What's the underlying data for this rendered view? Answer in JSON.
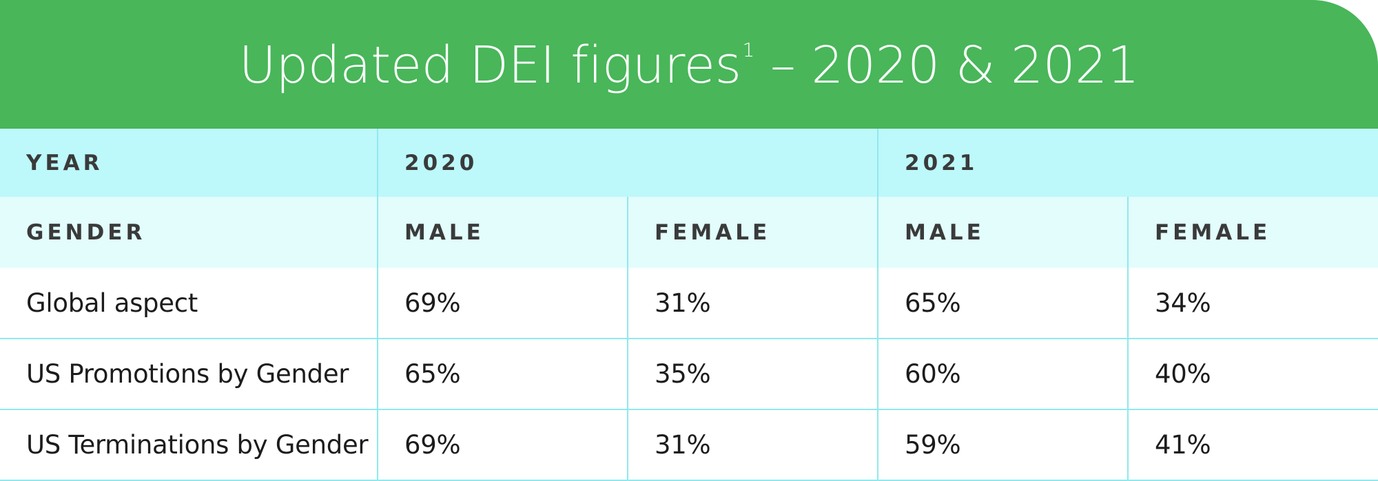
{
  "title": {
    "main": "Updated DEI figures",
    "footnote_marker": "1",
    "suffix": " – 2020 & 2021"
  },
  "table": {
    "year_row": {
      "label": "YEAR",
      "years": [
        "2020",
        "2021"
      ]
    },
    "gender_row": {
      "label": "GENDER",
      "columns": [
        "MALE",
        "FEMALE",
        "MALE",
        "FEMALE"
      ]
    },
    "rows": [
      {
        "label": "Global aspect",
        "values": [
          "69%",
          "31%",
          "65%",
          "34%"
        ]
      },
      {
        "label": "US Promotions by Gender",
        "values": [
          "65%",
          "35%",
          "60%",
          "40%"
        ]
      },
      {
        "label": "US Terminations by Gender",
        "values": [
          "69%",
          "31%",
          "59%",
          "41%"
        ]
      }
    ]
  },
  "colors": {
    "title_bar": "#48b659",
    "year_row_bg": "#bdf8fa",
    "gender_row_bg": "#e3fcfc",
    "grid_line": "#8fe9ee"
  }
}
